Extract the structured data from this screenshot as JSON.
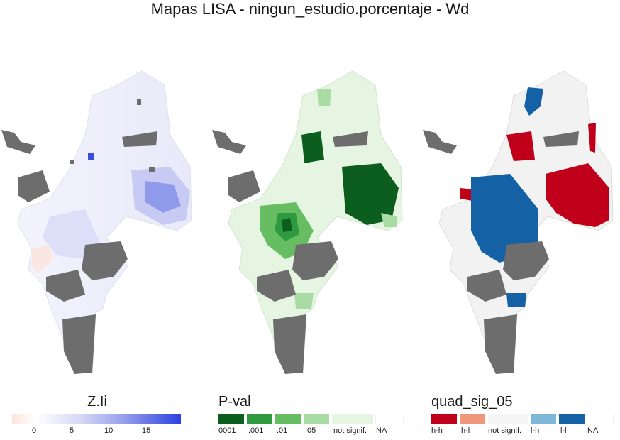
{
  "title": "Mapas LISA - ningun_estudio.porcentaje - Wd",
  "legend_zli": {
    "title": "Z.Ii",
    "ticks": [
      "0",
      "5",
      "10",
      "15"
    ],
    "colors": {
      "low": "#fde3dc",
      "mid": "#ffffff",
      "high": "#2c40e0"
    }
  },
  "legend_pval": {
    "title": "P-val",
    "items": [
      {
        "label": "0001",
        "color": "#0b5e1e"
      },
      {
        "label": ".001",
        "color": "#2f9a40"
      },
      {
        "label": ".01",
        "color": "#67be62"
      },
      {
        "label": ".05",
        "color": "#a9dca4"
      },
      {
        "label": "not signif.",
        "color": "#e6f5e2"
      },
      {
        "label": "NA",
        "color": "#ffffff"
      }
    ]
  },
  "legend_quad": {
    "title": "quad_sig_05",
    "items": [
      {
        "label": "h-h",
        "color": "#c0001a"
      },
      {
        "label": "h-l",
        "color": "#f0977a"
      },
      {
        "label": "not signif.",
        "color": "#f5f5f5"
      },
      {
        "label": "l-h",
        "color": "#7fb8d8"
      },
      {
        "label": "l-l",
        "color": "#1461a6"
      },
      {
        "label": "NA",
        "color": "#ffffff"
      }
    ]
  }
}
